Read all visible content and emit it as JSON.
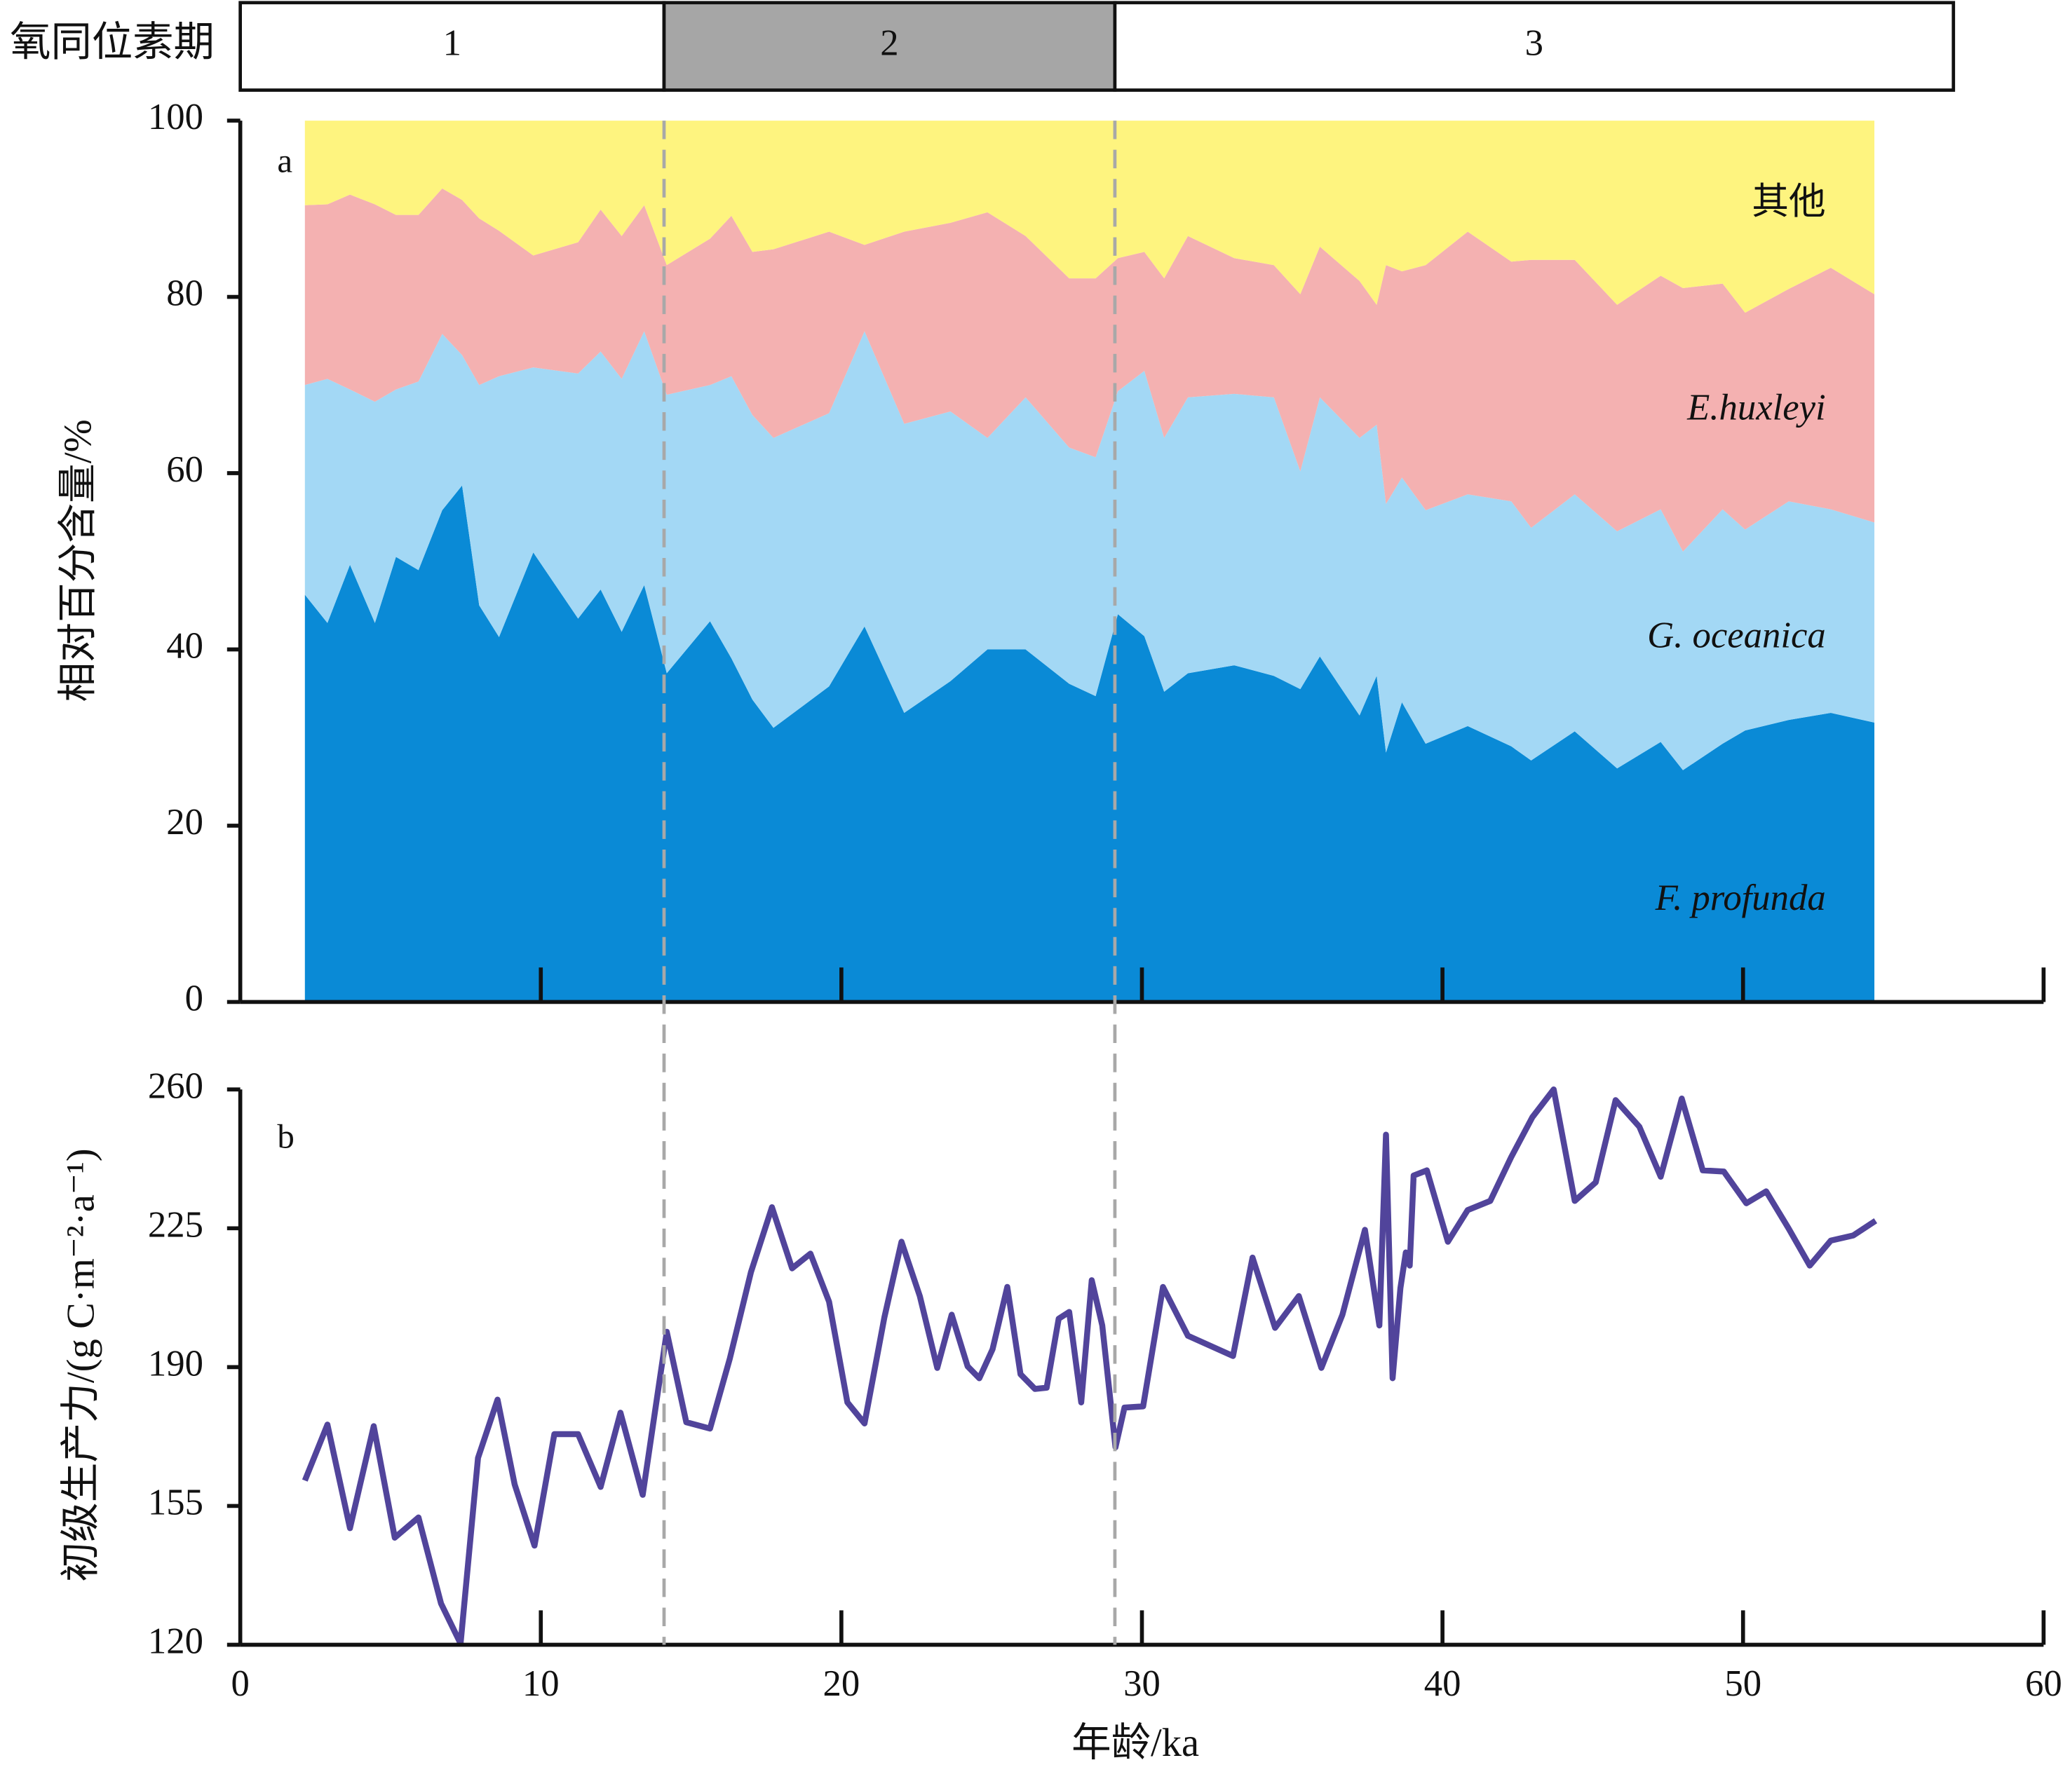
{
  "chart_data": [
    {
      "type": "stacked_area",
      "label": "a",
      "ylabel": "相对百分含量/%",
      "stages": {
        "label": "氧同位素期",
        "periods": [
          {
            "name": "1",
            "start": 0,
            "end": 14.1,
            "color": "#ffffff"
          },
          {
            "name": "2",
            "start": 14.1,
            "end": 29.1,
            "color": "#a6a6a6"
          },
          {
            "name": "3",
            "start": 29.1,
            "end": 57,
            "color": "#ffffff"
          }
        ]
      },
      "xlim": [
        0,
        60
      ],
      "ylim": [
        0,
        100
      ],
      "yticks": [
        0,
        20,
        40,
        60,
        80,
        100
      ],
      "x": [
        2.15,
        2.9,
        3.65,
        4.48,
        5.18,
        5.93,
        6.72,
        7.38,
        7.95,
        8.61,
        9.75,
        11.24,
        11.99,
        12.69,
        13.44,
        14.19,
        15.63,
        16.34,
        17.04,
        17.74,
        19.59,
        20.77,
        22.09,
        23.63,
        24.86,
        26.13,
        27.58,
        28.46,
        29.2,
        30.08,
        30.74,
        31.53,
        33.07,
        34.39,
        35.27,
        35.92,
        37.24,
        37.81,
        38.12,
        38.65,
        39.44,
        40.84,
        42.29,
        42.95,
        44.4,
        45.81,
        47.26,
        48.0,
        49.32,
        50.07,
        51.52,
        52.92,
        54.37
      ],
      "series": [
        {
          "name": "F. profunda",
          "color": "#0a8ad6",
          "values": [
            46.2,
            43,
            49.6,
            43,
            50.5,
            49,
            55.8,
            58.6,
            45,
            41.4,
            51,
            43.5,
            46.8,
            42,
            47.3,
            37.3,
            43.2,
            39,
            34.3,
            31.1,
            35.8,
            42.6,
            32.8,
            36.4,
            40,
            40,
            36.1,
            34.7,
            44,
            41.5,
            35.2,
            37.3,
            38.2,
            37,
            35.5,
            39.2,
            32.5,
            37,
            28.3,
            34,
            29.3,
            31.3,
            29,
            27.4,
            30.7,
            26.5,
            29.5,
            26.3,
            29.3,
            30.8,
            32,
            32.8,
            31.7
          ]
        },
        {
          "name": "G. oceanica",
          "color": "#a3d8f5",
          "values": [
            23.8,
            27.7,
            19.9,
            25.1,
            19,
            21.4,
            20,
            14.8,
            25,
            29.6,
            21,
            27.8,
            27,
            28.7,
            28.8,
            31.6,
            26.8,
            32,
            32.3,
            32.9,
            31,
            33.5,
            32.8,
            30.6,
            24,
            28.6,
            26.8,
            27.1,
            25.3,
            30.1,
            28.8,
            31.3,
            30.8,
            31.6,
            24.7,
            29.4,
            31.5,
            28.5,
            28.2,
            25.5,
            26.5,
            26.3,
            27.8,
            26.4,
            26.9,
            26.9,
            26.4,
            24.8,
            26.6,
            22.8,
            24.8,
            23.1,
            22.7
          ]
        },
        {
          "name": "E.huxleyi",
          "color": "#f4b1b1",
          "values": [
            20.4,
            19.8,
            22.1,
            22.4,
            19.8,
            18.9,
            16.5,
            17.6,
            18.9,
            16.5,
            12.7,
            14.9,
            16.1,
            16.2,
            14.3,
            14.7,
            16.6,
            18.2,
            18.5,
            21.4,
            20.6,
            9.8,
            21.8,
            21.4,
            25.6,
            18.3,
            19.2,
            20.3,
            15.1,
            13.5,
            18.1,
            18.3,
            15.4,
            15,
            20.1,
            17.1,
            17.8,
            13.6,
            27.1,
            23.4,
            27.8,
            29.8,
            27.2,
            30.4,
            26.6,
            25.7,
            26.5,
            29.9,
            25.6,
            24.6,
            24.1,
            27.4,
            25.9
          ]
        },
        {
          "name": "其他",
          "color": "#fef47f",
          "values": [
            9.6,
            9.5,
            8.4,
            9.5,
            10.7,
            10.7,
            7.7,
            9,
            11.1,
            12.5,
            15.3,
            13.8,
            10.1,
            13.1,
            9.6,
            16.4,
            13.4,
            10.8,
            14.9,
            14.6,
            12.6,
            14.1,
            12.6,
            11.6,
            10.4,
            13.1,
            17.9,
            17.9,
            15.6,
            14.9,
            17.9,
            13.1,
            15.6,
            16.4,
            19.7,
            14.3,
            18.2,
            20.9,
            16.4,
            17.1,
            16.4,
            12.6,
            16,
            15.8,
            15.8,
            20.9,
            17.6,
            19,
            18.5,
            21.8,
            19.1,
            16.7,
            19.7
          ]
        }
      ]
    },
    {
      "type": "line",
      "label": "b",
      "xlabel": "年龄/ka",
      "ylabel": "初级生产力/(g C·m⁻²·a⁻¹)",
      "xlim": [
        0,
        60
      ],
      "xticks": [
        0,
        10,
        20,
        30,
        40,
        50,
        60
      ],
      "ylim": [
        120,
        260
      ],
      "yticks": [
        120,
        155,
        190,
        225,
        260
      ],
      "color": "#51449b",
      "x": [
        2.15,
        2.9,
        3.65,
        4.44,
        5.14,
        5.93,
        6.68,
        7.33,
        7.91,
        8.56,
        9.13,
        9.79,
        10.45,
        11.24,
        11.99,
        12.65,
        13.39,
        14.19,
        14.84,
        15.63,
        16.29,
        16.99,
        17.69,
        18.36,
        18.97,
        19.59,
        20.2,
        20.77,
        21.43,
        22.0,
        22.61,
        23.19,
        23.67,
        24.2,
        24.59,
        25.03,
        25.52,
        25.96,
        26.44,
        26.83,
        27.23,
        27.58,
        27.98,
        28.33,
        28.68,
        29.12,
        29.42,
        30.04,
        30.7,
        31.53,
        33.03,
        33.68,
        34.43,
        35.22,
        35.97,
        36.67,
        37.42,
        37.9,
        38.12,
        38.34,
        38.6,
        38.78,
        38.91,
        39.04,
        39.48,
        40.18,
        40.84,
        41.59,
        42.29,
        42.99,
        43.7,
        44.4,
        45.1,
        45.76,
        46.55,
        47.26,
        47.96,
        48.66,
        49.36,
        50.11,
        50.77,
        51.52,
        52.22,
        52.92,
        53.67,
        54.41
      ],
      "values": [
        161.4,
        175.5,
        149.4,
        175.1,
        147,
        152.1,
        130.4,
        120.3,
        167.1,
        181.8,
        160.4,
        145,
        173.1,
        173.1,
        159.8,
        178.5,
        157.8,
        198.9,
        176.1,
        174.5,
        192.2,
        213.9,
        230.3,
        214.9,
        218.6,
        206.5,
        181.1,
        175.8,
        202.5,
        221.6,
        207.9,
        189.8,
        203.2,
        190.2,
        187.2,
        194.5,
        210.2,
        188.2,
        184.5,
        184.8,
        202.2,
        203.9,
        181.1,
        211.9,
        200.5,
        169.8,
        179.8,
        180.1,
        210.2,
        197.9,
        192.8,
        217.6,
        199.9,
        207.9,
        189.8,
        203.2,
        224.6,
        200.5,
        248.6,
        187.2,
        209.9,
        218.9,
        215.6,
        238.3,
        239.6,
        221.6,
        229.6,
        231.9,
        243,
        253,
        260,
        231.9,
        236.6,
        257.3,
        250.6,
        238,
        257.7,
        239.6,
        239.3,
        231.3,
        234.3,
        224.9,
        215.6,
        221.9,
        223.2,
        226.9
      ]
    }
  ]
}
